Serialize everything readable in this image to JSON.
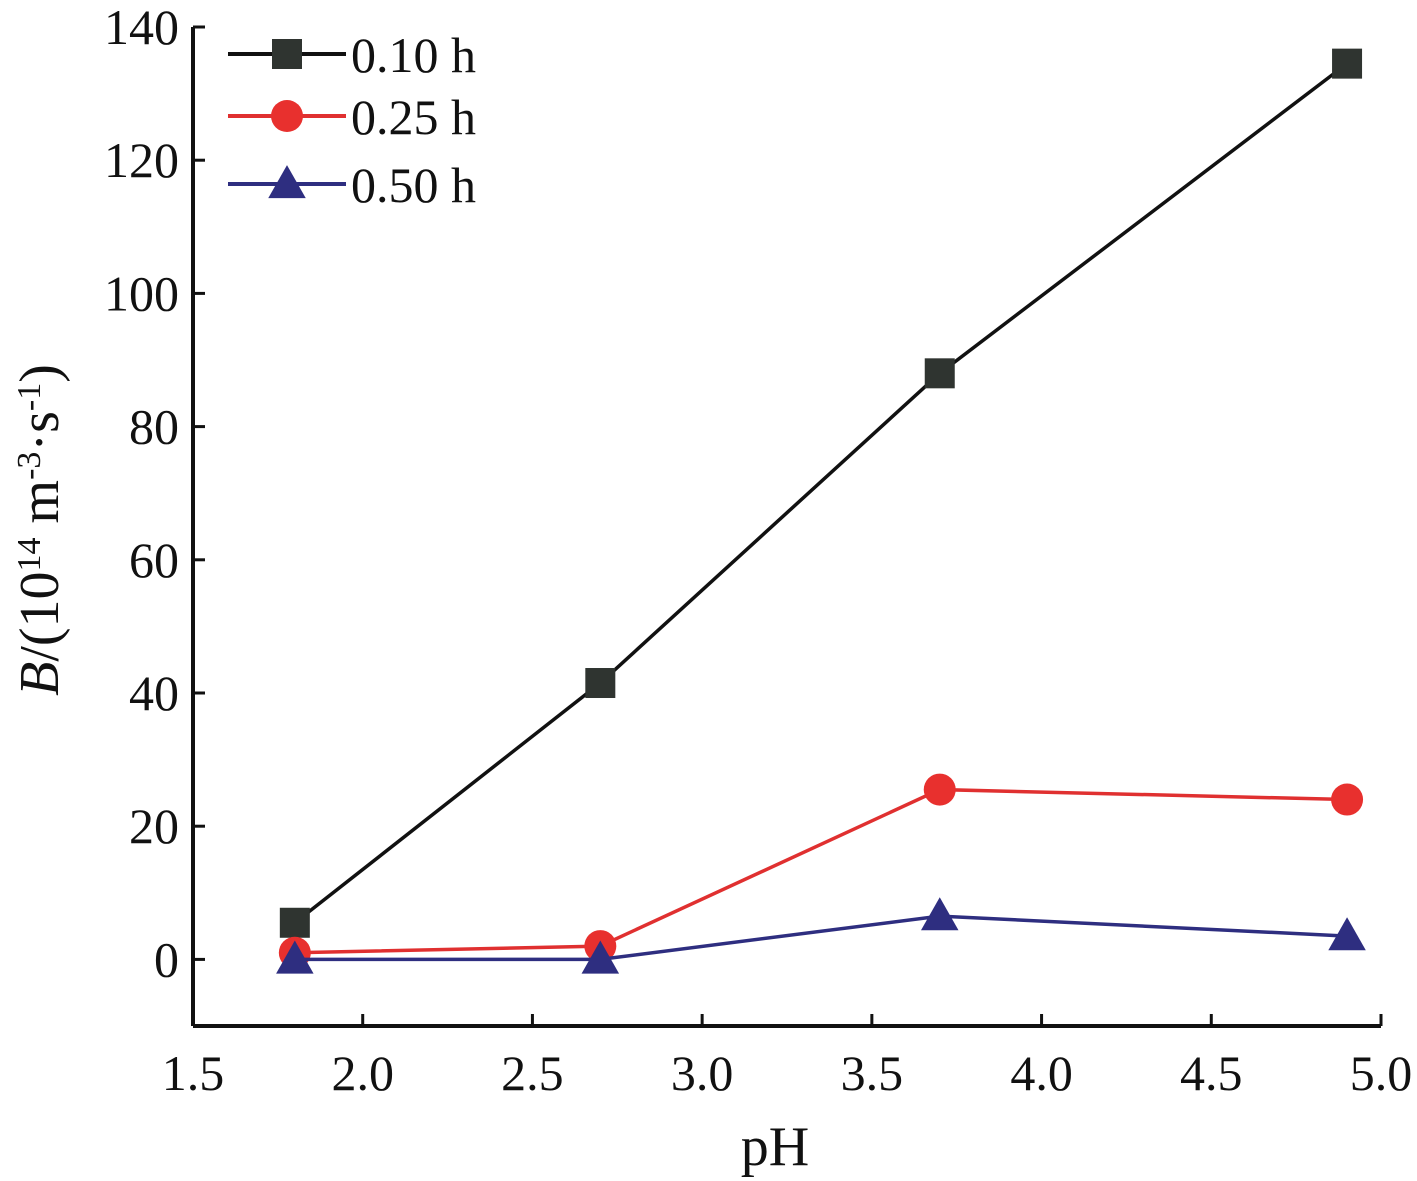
{
  "chart_data": {
    "type": "line",
    "xlabel": "pH",
    "ylabel": {
      "italic": "B",
      "rest": "/(10",
      "sup1": "14",
      "unit": " m",
      "sup2": "-3",
      "mid": "·s",
      "sup3": "-1",
      "close": ")"
    },
    "xlim": [
      1.5,
      5.0
    ],
    "ylim": [
      -10,
      140
    ],
    "xticks": [
      "1.5",
      "2.0",
      "2.5",
      "3.0",
      "3.5",
      "4.0",
      "4.5",
      "5.0"
    ],
    "yticks": [
      "0",
      "20",
      "40",
      "60",
      "80",
      "100",
      "120",
      "140"
    ],
    "grid": false,
    "legend_position": "top-left",
    "x": [
      1.8,
      2.7,
      3.7,
      4.9
    ],
    "series": [
      {
        "name": "0.10 h",
        "values": [
          5.5,
          41.5,
          88,
          134.5
        ],
        "color": "#111111",
        "marker_color": "#2f3430",
        "marker": "square"
      },
      {
        "name": "0.25 h",
        "values": [
          1,
          2,
          25.5,
          24
        ],
        "color": "#e03030",
        "marker_color": "#e8302e",
        "marker": "circle"
      },
      {
        "name": "0.50 h",
        "values": [
          0,
          0,
          6.5,
          3.5
        ],
        "color": "#2e2e80",
        "marker_color": "#2e2e80",
        "marker": "triangle"
      }
    ]
  }
}
